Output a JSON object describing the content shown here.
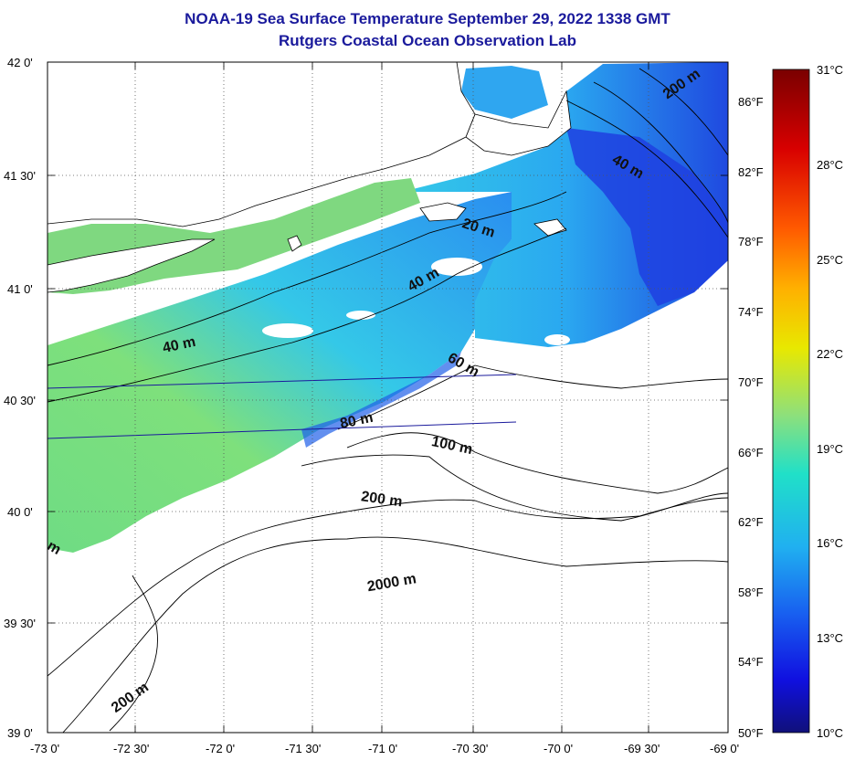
{
  "title": "NOAA-19 Sea Surface Temperature September 29, 2022 1338 GMT",
  "subtitle": "Rutgers Coastal Ocean Observation Lab",
  "lat_labels": [
    "42 0'",
    "41 30'",
    "41 0'",
    "40 30'",
    "40 0'",
    "39 30'",
    "39 0'"
  ],
  "lon_labels": [
    "-73 0'",
    "-72 30'",
    "-72 0'",
    "-71 30'",
    "-71 0'",
    "-70 30'",
    "-70 0'",
    "-69 30'",
    "-69 0'"
  ],
  "fahrenheit_labels": [
    "86°F",
    "82°F",
    "78°F",
    "74°F",
    "70°F",
    "66°F",
    "62°F",
    "58°F",
    "54°F",
    "50°F"
  ],
  "celsius_labels": [
    "31°C",
    "28°C",
    "25°C",
    "22°C",
    "19°C",
    "16°C",
    "13°C",
    "10°C"
  ],
  "depth_labels": {
    "d200_ne": "200 m",
    "d40_ne": "40 m",
    "d20": "20 m",
    "d40_mid": "40 m",
    "d40_w": "40 m",
    "d60": "60 m",
    "d80": "80 m",
    "d100": "100 m",
    "d200_mid": "200 m",
    "d2000": "2000 m",
    "d200_sw": "200 m",
    "dm_edge": "m"
  },
  "colors": {
    "title": "#1a1a9c",
    "land": "#ffffff",
    "ocean_masked": "#ffffff",
    "sst_cool": "#1f49e0",
    "sst_mid": "#2cb8f0",
    "sst_warm": "#8fe07a"
  }
}
